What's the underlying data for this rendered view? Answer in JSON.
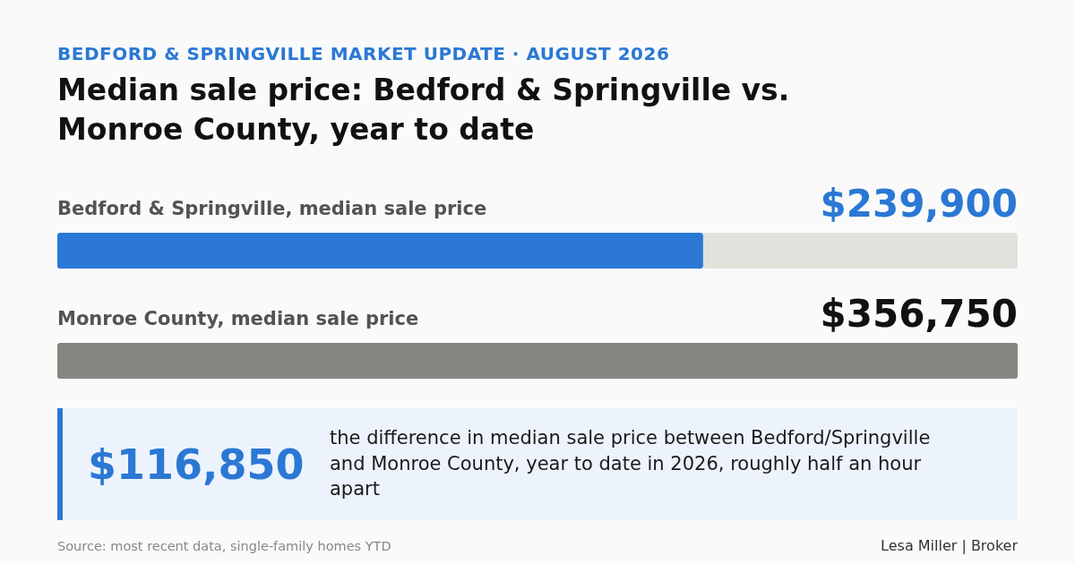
{
  "chart_data": {
    "type": "bar",
    "orientation": "horizontal",
    "subtitle": "BEDFORD & SPRINGVILLE MARKET UPDATE · AUGUST 2026",
    "title": "Median sale price: Bedford & Springville vs. Monroe County, year to date",
    "categories": [
      "Bedford & Springville, median sale price",
      "Monroe County, median sale price"
    ],
    "values": [
      239900,
      356750
    ],
    "value_labels": [
      "$239,900",
      "$356,750"
    ],
    "colors": [
      "#2b78d4",
      "#878580"
    ],
    "annotations": [
      "$116,850",
      "the difference in median sale price between Bedford/Springville and Monroe County, year to date in 2026, roughly half an hour apart",
      "Source: most recent data, single-family homes YTD",
      "Lesa Miller | Broker"
    ]
  }
}
